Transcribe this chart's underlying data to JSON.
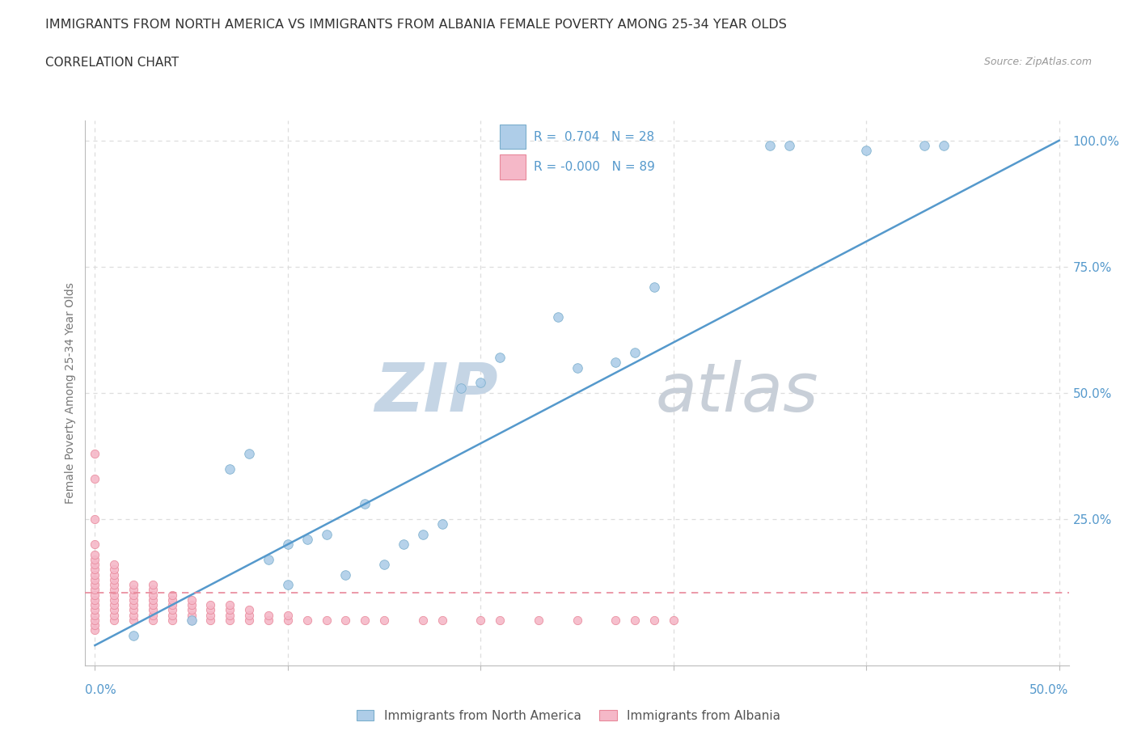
{
  "title": "IMMIGRANTS FROM NORTH AMERICA VS IMMIGRANTS FROM ALBANIA FEMALE POVERTY AMONG 25-34 YEAR OLDS",
  "subtitle": "CORRELATION CHART",
  "source": "Source: ZipAtlas.com",
  "blue_R": 0.704,
  "blue_N": 28,
  "pink_R": -0.0,
  "pink_N": 89,
  "blue_color": "#aecde8",
  "pink_color": "#f5b8c8",
  "blue_edge": "#7aaecc",
  "pink_edge": "#e8889a",
  "trend_blue": "#5599cc",
  "trend_pink": "#e8889a",
  "axis_color": "#bbbbbb",
  "grid_color": "#dddddd",
  "label_color": "#5599cc",
  "title_color": "#333333",
  "watermark_color": "#d0dde8",
  "blue_scatter_x": [
    0.02,
    0.05,
    0.07,
    0.08,
    0.09,
    0.1,
    0.1,
    0.11,
    0.12,
    0.13,
    0.14,
    0.15,
    0.16,
    0.17,
    0.18,
    0.19,
    0.2,
    0.21,
    0.24,
    0.25,
    0.27,
    0.28,
    0.29,
    0.35,
    0.36,
    0.4,
    0.43,
    0.44
  ],
  "blue_scatter_y": [
    0.02,
    0.05,
    0.35,
    0.38,
    0.17,
    0.12,
    0.2,
    0.21,
    0.22,
    0.14,
    0.28,
    0.16,
    0.2,
    0.22,
    0.24,
    0.51,
    0.52,
    0.57,
    0.65,
    0.55,
    0.56,
    0.58,
    0.71,
    0.99,
    0.99,
    0.98,
    0.99,
    0.99
  ],
  "pink_scatter_x": [
    0.0,
    0.0,
    0.0,
    0.0,
    0.0,
    0.0,
    0.0,
    0.0,
    0.0,
    0.0,
    0.0,
    0.0,
    0.0,
    0.0,
    0.0,
    0.0,
    0.0,
    0.0,
    0.0,
    0.0,
    0.01,
    0.01,
    0.01,
    0.01,
    0.01,
    0.01,
    0.01,
    0.01,
    0.01,
    0.01,
    0.01,
    0.01,
    0.02,
    0.02,
    0.02,
    0.02,
    0.02,
    0.02,
    0.02,
    0.02,
    0.03,
    0.03,
    0.03,
    0.03,
    0.03,
    0.03,
    0.03,
    0.03,
    0.04,
    0.04,
    0.04,
    0.04,
    0.04,
    0.04,
    0.05,
    0.05,
    0.05,
    0.05,
    0.05,
    0.06,
    0.06,
    0.06,
    0.06,
    0.07,
    0.07,
    0.07,
    0.07,
    0.08,
    0.08,
    0.08,
    0.09,
    0.09,
    0.1,
    0.1,
    0.11,
    0.12,
    0.13,
    0.14,
    0.15,
    0.17,
    0.18,
    0.2,
    0.21,
    0.23,
    0.25,
    0.27,
    0.28,
    0.29,
    0.3
  ],
  "pink_scatter_y": [
    0.03,
    0.04,
    0.05,
    0.06,
    0.07,
    0.08,
    0.09,
    0.1,
    0.11,
    0.12,
    0.13,
    0.14,
    0.15,
    0.16,
    0.17,
    0.18,
    0.2,
    0.25,
    0.33,
    0.38,
    0.05,
    0.06,
    0.07,
    0.08,
    0.09,
    0.1,
    0.11,
    0.12,
    0.13,
    0.14,
    0.15,
    0.16,
    0.05,
    0.06,
    0.07,
    0.08,
    0.09,
    0.1,
    0.11,
    0.12,
    0.05,
    0.06,
    0.07,
    0.08,
    0.09,
    0.1,
    0.11,
    0.12,
    0.05,
    0.06,
    0.07,
    0.08,
    0.09,
    0.1,
    0.05,
    0.06,
    0.07,
    0.08,
    0.09,
    0.05,
    0.06,
    0.07,
    0.08,
    0.05,
    0.06,
    0.07,
    0.08,
    0.05,
    0.06,
    0.07,
    0.05,
    0.06,
    0.05,
    0.06,
    0.05,
    0.05,
    0.05,
    0.05,
    0.05,
    0.05,
    0.05,
    0.05,
    0.05,
    0.05,
    0.05,
    0.05,
    0.05,
    0.05,
    0.05
  ],
  "pink_hline_y": 0.105,
  "xmin": 0.0,
  "xmax": 0.5,
  "ymin": 0.0,
  "ymax": 1.0,
  "trend_x0": 0.0,
  "trend_y0": 0.0,
  "trend_x1": 0.5,
  "trend_y1": 1.0
}
